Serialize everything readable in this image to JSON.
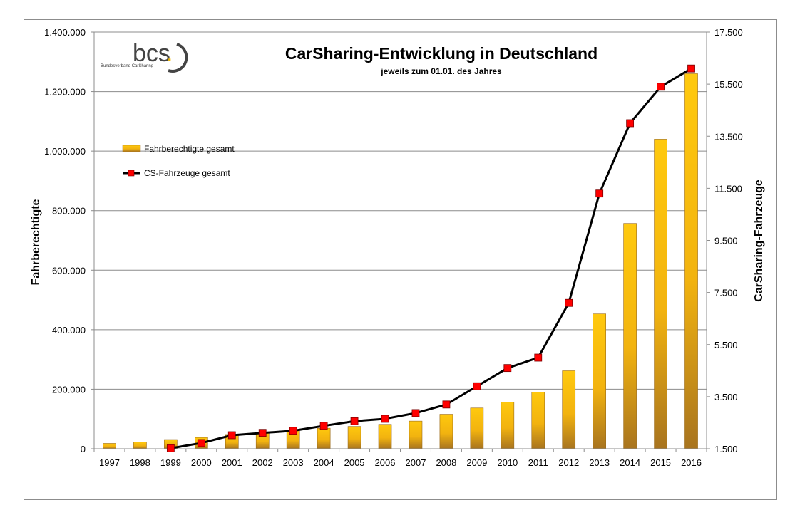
{
  "chart_data": {
    "type": "bar+line",
    "title": "CarSharing-Entwicklung in Deutschland",
    "subtitle": "jeweils zum 01.01. des Jahres",
    "categories": [
      "1997",
      "1998",
      "1999",
      "2000",
      "2001",
      "2002",
      "2003",
      "2004",
      "2005",
      "2006",
      "2007",
      "2008",
      "2009",
      "2010",
      "2011",
      "2012",
      "2013",
      "2014",
      "2015",
      "2016"
    ],
    "left_axis": {
      "label": "Fahrberechtigte",
      "ylim": [
        0,
        1400000
      ],
      "ticks": [
        "0",
        "200.000",
        "400.000",
        "600.000",
        "800.000",
        "1.000.000",
        "1.200.000",
        "1.400.000"
      ]
    },
    "right_axis": {
      "label": "CarSharing-Fahrzeuge",
      "ylim": [
        1500,
        17500
      ],
      "ticks": [
        "1.500",
        "3.500",
        "5.500",
        "7.500",
        "9.500",
        "11.500",
        "13.500",
        "15.500",
        "17.500"
      ]
    },
    "series": [
      {
        "name": "Fahrberechtigte gesamt",
        "kind": "bar",
        "axis": "left",
        "values": [
          18000,
          23000,
          31000,
          38000,
          48000,
          55000,
          62000,
          69000,
          75000,
          82000,
          93000,
          116000,
          137000,
          157000,
          190000,
          262000,
          453000,
          757000,
          1040000,
          1260000
        ]
      },
      {
        "name": "CS-Fahrzeuge gesamt",
        "kind": "line",
        "axis": "right",
        "values": [
          null,
          null,
          1520,
          1720,
          2020,
          2110,
          2190,
          2380,
          2560,
          2650,
          2870,
          3200,
          3900,
          4600,
          5000,
          7100,
          11300,
          14000,
          15400,
          16100
        ]
      }
    ],
    "grid": true,
    "legend_position": "left"
  },
  "logo": {
    "text": "bcs",
    "dot": ".",
    "subtext": "Bundesverband CarSharing"
  },
  "colors": {
    "bar_top": "#ffc90e",
    "bar_bottom": "#b07c24",
    "line": "#000000",
    "marker": "#ff0000",
    "logo_accent": "#f0b800"
  }
}
